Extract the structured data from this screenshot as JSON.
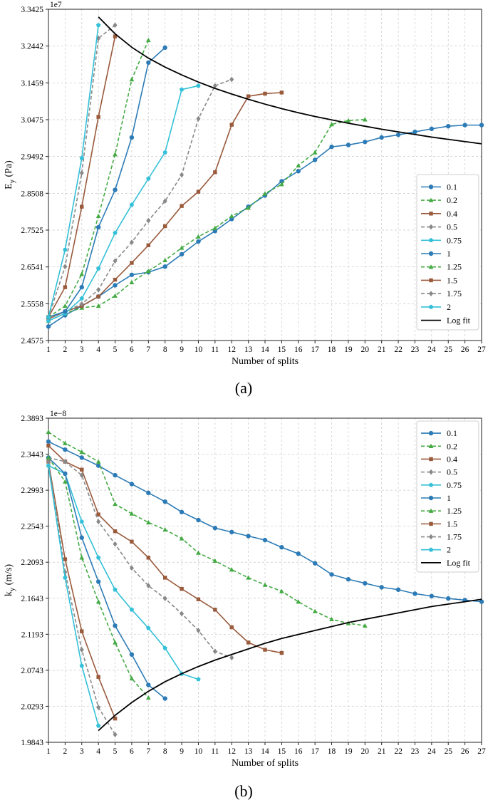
{
  "figure": {
    "caption_a": "(a)",
    "caption_b": "(b)"
  },
  "styles": {
    "markers": [
      "circle",
      "triangle",
      "square",
      "diamond",
      "pentagon"
    ],
    "dashes": [
      "",
      "5,3",
      "",
      "5,3",
      ""
    ],
    "colors": {
      "0.1": "#2c7bb6",
      "0.2": "#44aa44",
      "0.4": "#9a5a3c",
      "0.5": "#888888",
      "0.75": "#33c0d8",
      "1": "#2c7bb6",
      "1.25": "#44aa44",
      "1.5": "#9a5a3c",
      "1.75": "#888888",
      "2": "#33c0d8",
      "Log fit": "#000000"
    }
  },
  "chart_data": [
    {
      "id": "a",
      "type": "line",
      "exponent_label": "1e7",
      "xlabel": "Number of splits",
      "ylabel_main": "E",
      "ylabel_sub": "y",
      "ylabel_unit": " (Pa)",
      "xlim": [
        1,
        27
      ],
      "ylim": [
        2.4575,
        3.3425
      ],
      "xticks": [
        1,
        2,
        3,
        4,
        5,
        6,
        7,
        8,
        9,
        10,
        11,
        12,
        13,
        14,
        15,
        16,
        17,
        18,
        19,
        20,
        21,
        22,
        23,
        24,
        25,
        26,
        27
      ],
      "yticks": [
        "2.4575",
        "2.5558",
        "2.6541",
        "2.7525",
        "2.8508",
        "2.9492",
        "3.0475",
        "3.1459",
        "3.2442",
        "3.3425"
      ],
      "legend_position": "right-lower",
      "legend": [
        "0.1",
        "0.2",
        "0.4",
        "0.5",
        "0.75",
        "1",
        "1.25",
        "1.5",
        "1.75",
        "2",
        "Log fit"
      ],
      "series": [
        {
          "name": "0.1",
          "style": 0,
          "x": [
            1,
            2,
            3,
            4,
            5,
            6,
            7,
            8,
            9,
            10,
            11,
            12,
            13,
            14,
            15,
            16,
            17,
            18,
            19,
            20,
            21,
            22,
            23,
            24,
            25,
            26,
            27
          ],
          "y": [
            2.495,
            2.525,
            2.55,
            2.575,
            2.605,
            2.633,
            2.64,
            2.655,
            2.688,
            2.722,
            2.75,
            2.782,
            2.815,
            2.845,
            2.883,
            2.91,
            2.94,
            2.975,
            2.98,
            2.988,
            3.0,
            3.007,
            3.015,
            3.023,
            3.03,
            3.033,
            3.033
          ]
        },
        {
          "name": "0.2",
          "style": 1,
          "x": [
            1,
            2,
            3,
            4,
            5,
            6,
            7,
            8,
            9,
            10,
            11,
            12,
            13,
            14,
            15,
            16,
            17,
            18,
            19,
            20
          ],
          "y": [
            2.51,
            2.53,
            2.545,
            2.55,
            2.577,
            2.613,
            2.643,
            2.672,
            2.705,
            2.735,
            2.758,
            2.79,
            2.812,
            2.85,
            2.875,
            2.925,
            2.96,
            3.035,
            3.045,
            3.048
          ]
        },
        {
          "name": "0.4",
          "style": 2,
          "x": [
            1,
            2,
            3,
            4,
            5,
            6,
            7,
            8,
            9,
            10,
            11,
            12,
            13,
            14,
            15
          ],
          "y": [
            2.515,
            2.535,
            2.55,
            2.575,
            2.62,
            2.665,
            2.712,
            2.763,
            2.817,
            2.855,
            2.907,
            3.034,
            3.11,
            3.117,
            3.12
          ]
        },
        {
          "name": "0.5",
          "style": 3,
          "x": [
            1,
            2,
            3,
            4,
            5,
            6,
            7,
            8,
            9,
            10,
            11,
            12
          ],
          "y": [
            2.515,
            2.535,
            2.555,
            2.593,
            2.67,
            2.72,
            2.778,
            2.83,
            2.9,
            3.05,
            3.138,
            3.155
          ]
        },
        {
          "name": "0.75",
          "style": 4,
          "x": [
            1,
            2,
            3,
            4,
            5,
            6,
            7,
            8,
            9,
            10
          ],
          "y": [
            2.51,
            2.53,
            2.57,
            2.65,
            2.745,
            2.82,
            2.89,
            2.96,
            3.128,
            3.138
          ]
        },
        {
          "name": "1",
          "style": 0,
          "x": [
            1,
            2,
            3,
            4,
            5,
            6,
            7,
            8
          ],
          "y": [
            2.52,
            2.535,
            2.6,
            2.76,
            2.86,
            3.0,
            3.2,
            3.24
          ]
        },
        {
          "name": "1.25",
          "style": 1,
          "x": [
            1,
            2,
            3,
            4,
            5,
            6,
            7
          ],
          "y": [
            2.52,
            2.55,
            2.635,
            2.79,
            2.955,
            3.155,
            3.26
          ]
        },
        {
          "name": "1.5",
          "style": 2,
          "x": [
            1,
            2,
            3,
            4,
            5
          ],
          "y": [
            2.52,
            2.6,
            2.815,
            3.055,
            3.27
          ]
        },
        {
          "name": "1.75",
          "style": 3,
          "x": [
            1,
            2,
            3,
            4,
            5
          ],
          "y": [
            2.52,
            2.655,
            2.905,
            3.265,
            3.3
          ]
        },
        {
          "name": "2",
          "style": 4,
          "x": [
            1,
            2,
            3,
            4
          ],
          "y": [
            2.52,
            2.7,
            2.945,
            3.3
          ]
        },
        {
          "name": "Log fit",
          "style": -1,
          "x": [
            4,
            5,
            6,
            7,
            8,
            9,
            10,
            11,
            12,
            13,
            14,
            15,
            16,
            17,
            18,
            19,
            20,
            21,
            22,
            23,
            24,
            25,
            26,
            27
          ],
          "y": [
            3.322,
            3.277,
            3.241,
            3.212,
            3.188,
            3.167,
            3.148,
            3.131,
            3.116,
            3.102,
            3.089,
            3.077,
            3.066,
            3.056,
            3.047,
            3.038,
            3.03,
            3.022,
            3.015,
            3.008,
            3.001,
            2.995,
            2.989,
            2.983
          ]
        }
      ]
    },
    {
      "id": "b",
      "type": "line",
      "exponent_label": "1e−8",
      "xlabel": "Number of splits",
      "ylabel_main": "k",
      "ylabel_sub": "y",
      "ylabel_unit": " (m/s)",
      "xlim": [
        1,
        27
      ],
      "ylim": [
        1.9843,
        2.3893
      ],
      "xticks": [
        1,
        2,
        3,
        4,
        5,
        6,
        7,
        8,
        9,
        10,
        11,
        12,
        13,
        14,
        15,
        16,
        17,
        18,
        19,
        20,
        21,
        22,
        23,
        24,
        25,
        26,
        27
      ],
      "yticks": [
        "1.9843",
        "2.0293",
        "2.0743",
        "2.1193",
        "2.1643",
        "2.2093",
        "2.2543",
        "2.2993",
        "2.3443",
        "2.3893"
      ],
      "legend_position": "top-right",
      "legend": [
        "0.1",
        "0.2",
        "0.4",
        "0.5",
        "0.75",
        "1",
        "1.25",
        "1.5",
        "1.75",
        "2",
        "Log fit"
      ],
      "series": [
        {
          "name": "0.1",
          "style": 0,
          "x": [
            1,
            2,
            3,
            4,
            5,
            6,
            7,
            8,
            9,
            10,
            11,
            12,
            13,
            14,
            15,
            16,
            17,
            18,
            19,
            20,
            21,
            22,
            23,
            24,
            25,
            26,
            27
          ],
          "y": [
            2.36,
            2.35,
            2.34,
            2.33,
            2.318,
            2.307,
            2.296,
            2.285,
            2.272,
            2.262,
            2.252,
            2.247,
            2.242,
            2.237,
            2.228,
            2.22,
            2.208,
            2.194,
            2.188,
            2.183,
            2.178,
            2.175,
            2.17,
            2.167,
            2.164,
            2.162,
            2.16
          ]
        },
        {
          "name": "0.2",
          "style": 1,
          "x": [
            1,
            2,
            3,
            4,
            5,
            6,
            7,
            8,
            9,
            10,
            11,
            12,
            13,
            14,
            15,
            16,
            17,
            18,
            19,
            20
          ],
          "y": [
            2.372,
            2.358,
            2.347,
            2.335,
            2.282,
            2.27,
            2.259,
            2.25,
            2.239,
            2.221,
            2.211,
            2.2,
            2.19,
            2.181,
            2.173,
            2.16,
            2.148,
            2.138,
            2.133,
            2.13
          ]
        },
        {
          "name": "0.4",
          "style": 2,
          "x": [
            1,
            2,
            3,
            4,
            5,
            6,
            7,
            8,
            9,
            10,
            11,
            12,
            13,
            14,
            15
          ],
          "y": [
            2.355,
            2.335,
            2.325,
            2.269,
            2.248,
            2.235,
            2.215,
            2.19,
            2.176,
            2.163,
            2.15,
            2.128,
            2.109,
            2.1,
            2.096
          ]
        },
        {
          "name": "0.5",
          "style": 3,
          "x": [
            1,
            2,
            3,
            4,
            5,
            6,
            7,
            8,
            9,
            10,
            11,
            12
          ],
          "y": [
            2.34,
            2.335,
            2.318,
            2.26,
            2.232,
            2.202,
            2.18,
            2.164,
            2.145,
            2.124,
            2.098,
            2.09
          ]
        },
        {
          "name": "0.75",
          "style": 4,
          "x": [
            1,
            2,
            3,
            4,
            5,
            6,
            7,
            8,
            9,
            10
          ],
          "y": [
            2.33,
            2.32,
            2.26,
            2.215,
            2.175,
            2.15,
            2.127,
            2.102,
            2.07,
            2.063
          ]
        },
        {
          "name": "1",
          "style": 0,
          "x": [
            1,
            2,
            3,
            4,
            5,
            6,
            7,
            8
          ],
          "y": [
            2.34,
            2.32,
            2.24,
            2.185,
            2.13,
            2.094,
            2.056,
            2.039
          ]
        },
        {
          "name": "1.25",
          "style": 1,
          "x": [
            1,
            2,
            3,
            4,
            5,
            6,
            7
          ],
          "y": [
            2.34,
            2.31,
            2.215,
            2.16,
            2.109,
            2.064,
            2.04
          ]
        },
        {
          "name": "1.5",
          "style": 2,
          "x": [
            1,
            2,
            3,
            4,
            5
          ],
          "y": [
            2.335,
            2.213,
            2.123,
            2.066,
            2.014
          ]
        },
        {
          "name": "1.75",
          "style": 3,
          "x": [
            1,
            2,
            3,
            4,
            5
          ],
          "y": [
            2.335,
            2.197,
            2.1,
            2.028,
            1.994
          ]
        },
        {
          "name": "2",
          "style": 4,
          "x": [
            1,
            2,
            3,
            4
          ],
          "y": [
            2.33,
            2.19,
            2.08,
            2.005
          ]
        },
        {
          "name": "Log fit",
          "style": -1,
          "x": [
            4,
            5,
            6,
            7,
            8,
            9,
            10,
            11,
            12,
            13,
            14,
            15,
            16,
            17,
            18,
            19,
            20,
            21,
            22,
            23,
            24,
            25,
            26,
            27
          ],
          "y": [
            1.999,
            2.018,
            2.034,
            2.048,
            2.06,
            2.07,
            2.079,
            2.087,
            2.094,
            2.101,
            2.108,
            2.114,
            2.119,
            2.124,
            2.129,
            2.134,
            2.138,
            2.142,
            2.146,
            2.15,
            2.154,
            2.157,
            2.16,
            2.163
          ]
        }
      ]
    }
  ]
}
